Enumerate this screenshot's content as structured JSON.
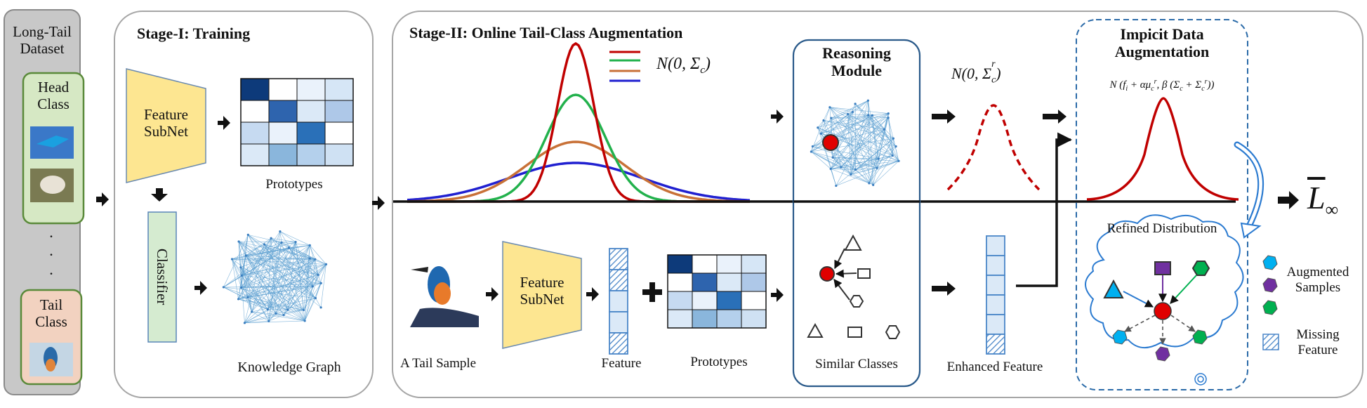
{
  "long_tail": {
    "title_line1": "Long-Tail",
    "title_line2": "Dataset",
    "head_line1": "Head",
    "head_line2": "Class",
    "tail_line1": "Tail",
    "tail_line2": "Class",
    "dots": "."
  },
  "stage1": {
    "title": "Stage-I: Training",
    "feature_subnet_line1": "Feature",
    "feature_subnet_line2": "SubNet",
    "classifier": "Classifier",
    "prototypes": "Prototypes",
    "knowledge_graph": "Knowledge Graph"
  },
  "stage2": {
    "title": "Stage-II: Online Tail-Class Augmentation",
    "legend_label": "N(0, Σ",
    "legend_sub": "c",
    "legend_close": ")",
    "tail_sample": "A Tail Sample",
    "feature_subnet_line1": "Feature",
    "feature_subnet_line2": "SubNet",
    "feature": "Feature",
    "prototypes": "Prototypes",
    "reasoning_line1": "Reasoning",
    "reasoning_line2": "Module",
    "similar_classes": "Similar Classes",
    "ncr_label": "N(0, Σ",
    "ncr_sub": "c",
    "ncr_sup": "r",
    "ncr_close": ")",
    "enhanced_feature": "Enhanced Feature",
    "ida_line1": "Impicit Data",
    "ida_line2": "Augmentation",
    "ida_formula": "N (f",
    "ida_formula_rest": " + αμ",
    "ida_formula_tail": ", β (Σ",
    "ida_formula_end": " + Σ",
    "refined_distribution": "Refined Distribution",
    "augmented_line1": "Augmented",
    "augmented_line2": "Samples",
    "missing_line1": "Missing",
    "missing_line2": "Feature",
    "loss": "L",
    "loss_sub": "∞"
  },
  "colors": {
    "dataset_bg": "#c8c8c8",
    "head_bg": "#d6e8c4",
    "tail_bg": "#f2d2c0",
    "subnet_yellow": "#fde691",
    "classifier_green": "#d5ebd0",
    "curve_red": "#c00000",
    "curve_green": "#22b14c",
    "curve_orange": "#c87137",
    "curve_blue": "#2020d0",
    "graph_blue": "#5a9ed0",
    "panel_border": "#2a5a8a",
    "augmented_cyan": "#00b0f0",
    "augmented_purple": "#7030a0",
    "augmented_green": "#00b050"
  }
}
